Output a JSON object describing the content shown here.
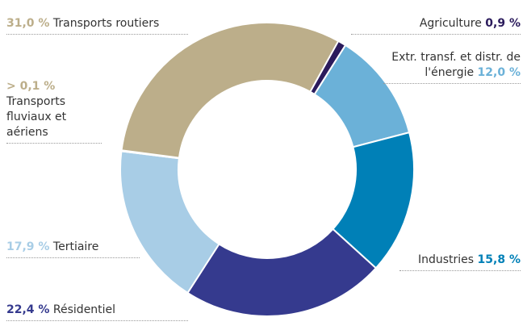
{
  "chart_data": {
    "type": "pie",
    "categories": [
      "Agriculture",
      "Extr. transf. et distr. de l'énergie",
      "Industries",
      "Résidentiel",
      "Tertiaire",
      "Transports fluviaux et aériens",
      "Transports routiers"
    ],
    "values": [
      0.9,
      12.0,
      15.8,
      22.4,
      17.9,
      0.1,
      31.0
    ],
    "value_labels": [
      "0,9 %",
      "12,0 %",
      "15,8 %",
      "22,4 %",
      "17,9 %",
      "> 0,1 %",
      "31,0 %"
    ],
    "colors": [
      "#2b1b5c",
      "#6bb1d8",
      "#0080b7",
      "#353a8e",
      "#a8cde6",
      "#bcae8a",
      "#bcae8a"
    ]
  }
}
